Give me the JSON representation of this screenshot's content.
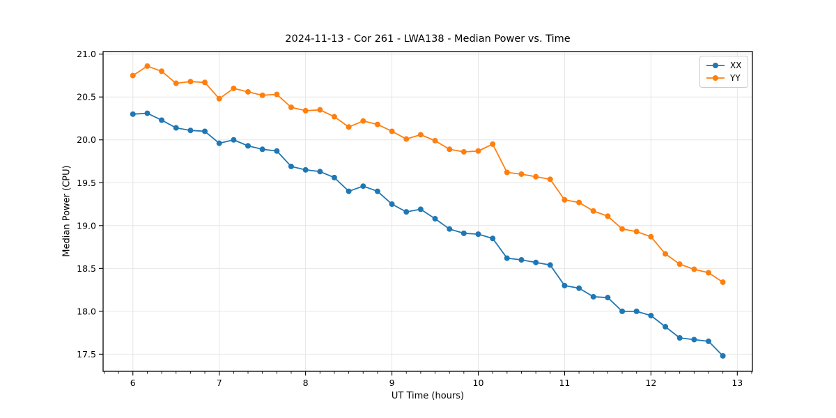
{
  "figure": {
    "title": "2024-11-13 - Cor 261 - LWA138 - Median Power vs. Time",
    "xlabel": "UT Time (hours)",
    "ylabel": "Median Power (CPU)"
  },
  "chart_data": {
    "type": "line",
    "title": "2024-11-13 - Cor 261 - LWA138 - Median Power vs. Time",
    "xlabel": "UT Time (hours)",
    "ylabel": "Median Power (CPU)",
    "xlim": [
      5.655,
      13.175
    ],
    "ylim": [
      17.3,
      21.03
    ],
    "xticks": [
      6,
      7,
      8,
      9,
      10,
      11,
      12,
      13
    ],
    "yticks": [
      17.5,
      18.0,
      18.5,
      19.0,
      19.5,
      20.0,
      20.5,
      21.0
    ],
    "x_minor_step_hours": 0.16667,
    "grid": true,
    "legend_position": "upper right",
    "marker": "circle",
    "x": [
      6.0,
      6.167,
      6.333,
      6.5,
      6.667,
      6.833,
      7.0,
      7.167,
      7.333,
      7.5,
      7.667,
      7.833,
      8.0,
      8.167,
      8.333,
      8.5,
      8.667,
      8.833,
      9.0,
      9.167,
      9.333,
      9.5,
      9.667,
      9.833,
      10.0,
      10.167,
      10.333,
      10.5,
      10.667,
      10.833,
      11.0,
      11.167,
      11.333,
      11.5,
      11.667,
      11.833,
      12.0,
      12.167,
      12.333,
      12.5,
      12.667,
      12.833
    ],
    "series": [
      {
        "name": "XX",
        "color": "#1f77b4",
        "values": [
          20.3,
          20.31,
          20.23,
          20.14,
          20.11,
          20.1,
          19.96,
          20.0,
          19.93,
          19.89,
          19.87,
          19.69,
          19.65,
          19.63,
          19.56,
          19.4,
          19.46,
          19.4,
          19.25,
          19.16,
          19.19,
          19.08,
          18.96,
          18.91,
          18.9,
          18.85,
          18.62,
          18.6,
          18.57,
          18.54,
          18.3,
          18.27,
          18.17,
          18.16,
          18.0,
          18.0,
          17.95,
          17.82,
          17.69,
          17.67,
          17.65,
          17.48
        ]
      },
      {
        "name": "YY",
        "color": "#ff7f0e",
        "values": [
          20.75,
          20.86,
          20.8,
          20.66,
          20.68,
          20.67,
          20.48,
          20.6,
          20.56,
          20.52,
          20.53,
          20.38,
          20.34,
          20.35,
          20.27,
          20.15,
          20.22,
          20.18,
          20.1,
          20.01,
          20.06,
          19.99,
          19.89,
          19.86,
          19.87,
          19.95,
          19.62,
          19.6,
          19.57,
          19.54,
          19.3,
          19.27,
          19.17,
          19.11,
          18.96,
          18.93,
          18.87,
          18.67,
          18.55,
          18.49,
          18.45,
          18.34
        ]
      }
    ],
    "style": {
      "grid_color": "#e6e6e6",
      "spine_color": "#000000",
      "tick_color": "#000000",
      "background": "#ffffff"
    }
  }
}
